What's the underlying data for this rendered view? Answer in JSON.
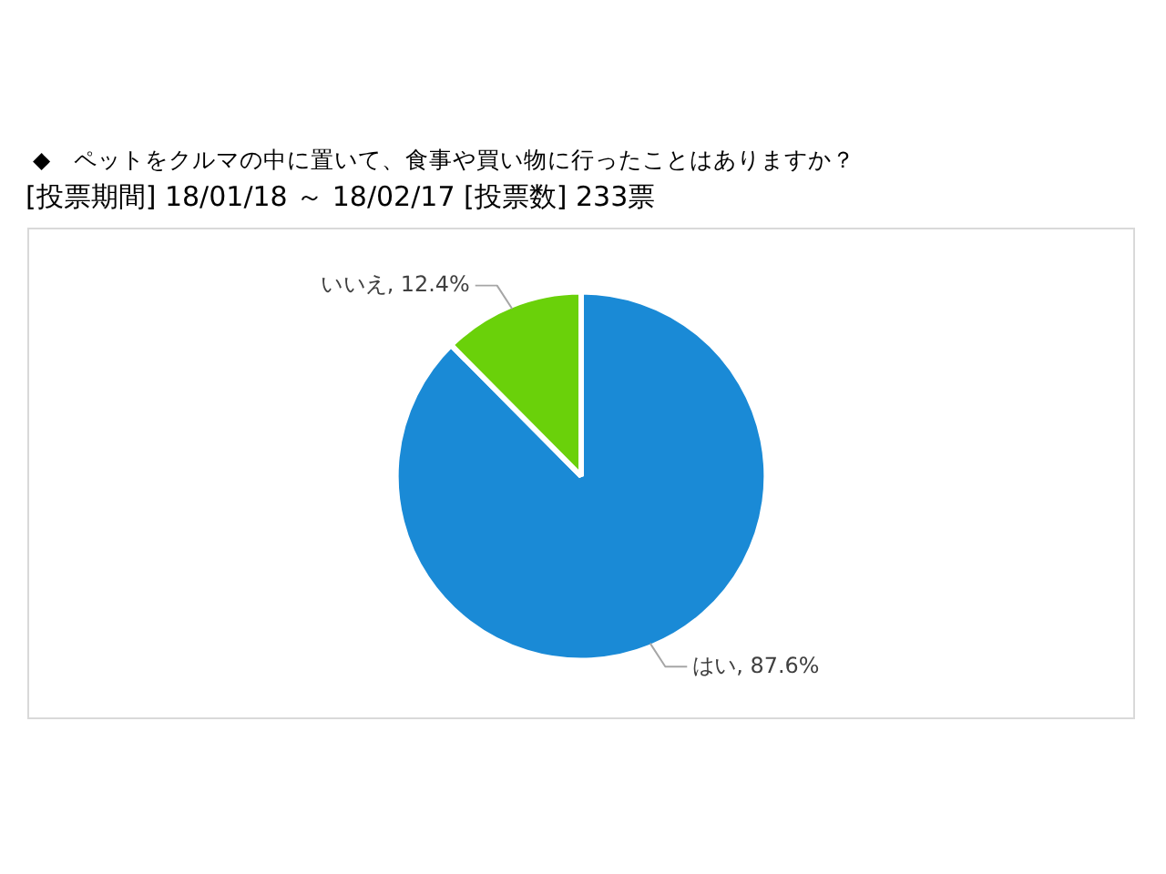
{
  "chart_data": {
    "type": "pie",
    "title": "◆　ペットをクルマの中に置いて、食事や買い物に行ったことはありますか？",
    "subtitle": "[投票期間] 18/01/18 ～ 18/02/17 [投票数] 233票",
    "categories": [
      "はい",
      "いいえ"
    ],
    "values": [
      87.6,
      12.4
    ],
    "colors": [
      "#1a8ad6",
      "#6ad10a"
    ],
    "value_labels": [
      "87.6%",
      "12.4%"
    ],
    "legend": false
  }
}
